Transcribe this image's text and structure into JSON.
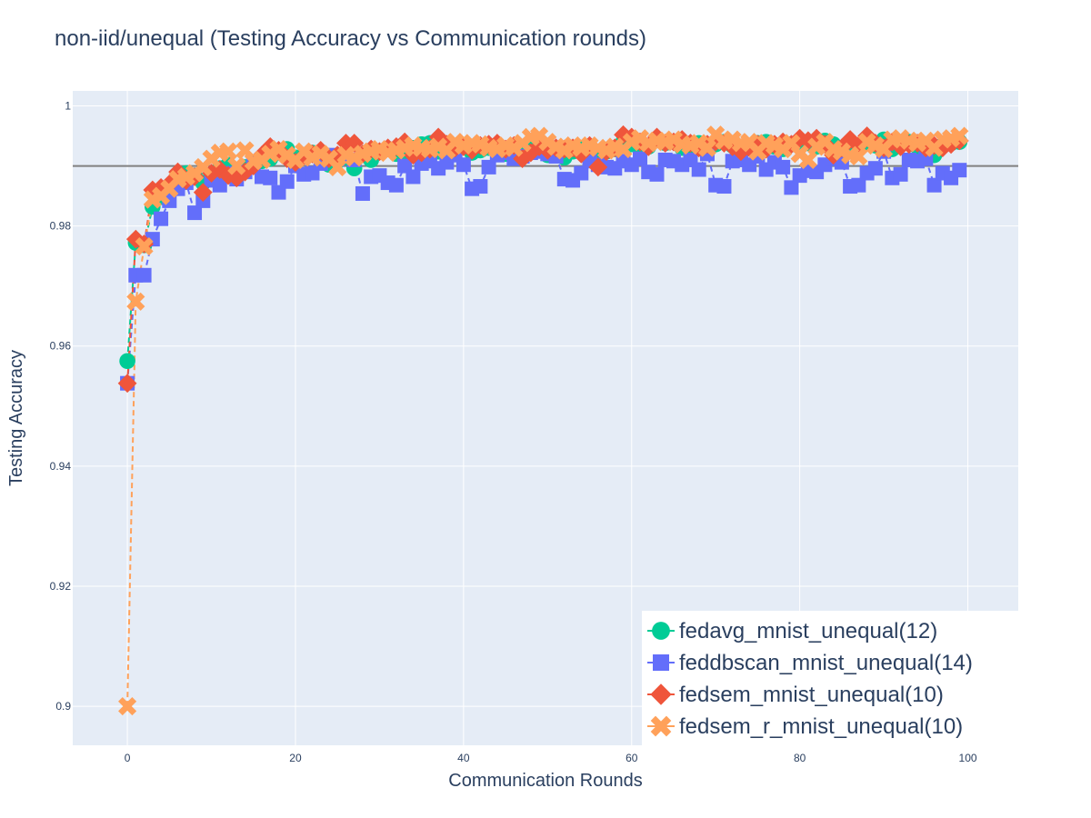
{
  "chart_data": {
    "type": "scatter",
    "mode": "lines+markers",
    "title": "non-iid/unequal (Testing Accuracy vs Communication rounds)",
    "xlabel": "Communication Rounds",
    "ylabel": "Testing Accuracy",
    "xlim": [
      -6.5,
      106
    ],
    "ylim": [
      0.8935,
      1.0025
    ],
    "xticks": [
      0,
      20,
      40,
      60,
      80,
      100
    ],
    "xtick_labels": [
      "0",
      "20",
      "40",
      "60",
      "80",
      "100"
    ],
    "yticks": [
      0.9,
      0.92,
      0.94,
      0.96,
      0.98,
      1.0
    ],
    "ytick_labels": [
      "0.9",
      "0.92",
      "0.94",
      "0.96",
      "0.98",
      "1"
    ],
    "grid": true,
    "hline": 0.99,
    "hline_color": "#808080",
    "legend_position": "bottom-right",
    "colors": {
      "plot_bg": "#e5ecf6",
      "grid": "#ffffff",
      "text": "#2a3f5f"
    },
    "series": [
      {
        "name": "fedavg_mnist_unequal(12)",
        "color": "#00cc96",
        "marker": "circle",
        "x": [
          0,
          1,
          2,
          3,
          4,
          5,
          6,
          7,
          8,
          9,
          10,
          11,
          12,
          13,
          14,
          15,
          16,
          17,
          18,
          19,
          20,
          21,
          22,
          23,
          24,
          25,
          26,
          27,
          28,
          29,
          30,
          31,
          32,
          33,
          34,
          35,
          36,
          37,
          38,
          39,
          40,
          41,
          42,
          43,
          44,
          45,
          46,
          47,
          48,
          49,
          50,
          51,
          52,
          53,
          54,
          55,
          56,
          57,
          58,
          59,
          60,
          61,
          62,
          63,
          64,
          65,
          66,
          67,
          68,
          69,
          70,
          71,
          72,
          73,
          74,
          75,
          76,
          77,
          78,
          79,
          80,
          81,
          82,
          83,
          84,
          85,
          86,
          87,
          88,
          89,
          90,
          91,
          92,
          93,
          94,
          95,
          96,
          97,
          98,
          99
        ],
        "values": [
          0.9575,
          0.9772,
          0.9768,
          0.9832,
          0.9848,
          0.9858,
          0.9868,
          0.9888,
          0.9884,
          0.9872,
          0.9878,
          0.9896,
          0.9902,
          0.9892,
          0.9898,
          0.9904,
          0.9908,
          0.9912,
          0.9922,
          0.9928,
          0.9914,
          0.9918,
          0.9922,
          0.9916,
          0.9902,
          0.9908,
          0.9914,
          0.9896,
          0.9918,
          0.991,
          0.9924,
          0.9928,
          0.992,
          0.9916,
          0.993,
          0.9936,
          0.9938,
          0.9924,
          0.992,
          0.9928,
          0.9932,
          0.9922,
          0.9926,
          0.993,
          0.9934,
          0.992,
          0.9924,
          0.9928,
          0.9932,
          0.9926,
          0.9918,
          0.9922,
          0.9914,
          0.9924,
          0.993,
          0.992,
          0.9916,
          0.9924,
          0.9928,
          0.994,
          0.9936,
          0.9928,
          0.9932,
          0.9944,
          0.9938,
          0.994,
          0.993,
          0.9934,
          0.9938,
          0.9932,
          0.9936,
          0.994,
          0.9934,
          0.993,
          0.9932,
          0.9938,
          0.994,
          0.9932,
          0.9928,
          0.9936,
          0.9934,
          0.9938,
          0.9932,
          0.9942,
          0.9936,
          0.9928,
          0.9932,
          0.993,
          0.9938,
          0.9934,
          0.9944,
          0.9928,
          0.9936,
          0.994,
          0.9932,
          0.993,
          0.9918,
          0.9934,
          0.9938,
          0.994
        ]
      },
      {
        "name": "feddbscan_mnist_unequal(14)",
        "color": "#636efa",
        "marker": "square",
        "x": [
          0,
          1,
          2,
          3,
          4,
          5,
          6,
          7,
          8,
          9,
          10,
          11,
          12,
          13,
          14,
          15,
          16,
          17,
          18,
          19,
          20,
          21,
          22,
          23,
          24,
          25,
          26,
          27,
          28,
          29,
          30,
          31,
          32,
          33,
          34,
          35,
          36,
          37,
          38,
          39,
          40,
          41,
          42,
          43,
          44,
          45,
          46,
          47,
          48,
          49,
          50,
          51,
          52,
          53,
          54,
          55,
          56,
          57,
          58,
          59,
          60,
          61,
          62,
          63,
          64,
          65,
          66,
          67,
          68,
          69,
          70,
          71,
          72,
          73,
          74,
          75,
          76,
          77,
          78,
          79,
          80,
          81,
          82,
          83,
          84,
          85,
          86,
          87,
          88,
          89,
          90,
          91,
          92,
          93,
          94,
          95,
          96,
          97,
          98,
          99
        ],
        "values": [
          0.9538,
          0.9718,
          0.9718,
          0.9778,
          0.9812,
          0.9842,
          0.9862,
          0.9872,
          0.9822,
          0.9842,
          0.9876,
          0.9868,
          0.9888,
          0.9878,
          0.989,
          0.9904,
          0.9882,
          0.988,
          0.9856,
          0.9874,
          0.99,
          0.9886,
          0.9888,
          0.9904,
          0.9918,
          0.9912,
          0.9916,
          0.991,
          0.9854,
          0.9882,
          0.9884,
          0.9872,
          0.9868,
          0.99,
          0.9882,
          0.9904,
          0.9908,
          0.9896,
          0.9906,
          0.9918,
          0.9902,
          0.9862,
          0.9866,
          0.9898,
          0.9918,
          0.9922,
          0.9912,
          0.9916,
          0.9922,
          0.9924,
          0.992,
          0.9916,
          0.9878,
          0.9876,
          0.9888,
          0.9908,
          0.9902,
          0.9898,
          0.9896,
          0.9908,
          0.9902,
          0.9912,
          0.989,
          0.9886,
          0.991,
          0.9908,
          0.9902,
          0.991,
          0.9894,
          0.992,
          0.9868,
          0.9866,
          0.9908,
          0.991,
          0.9902,
          0.9916,
          0.9894,
          0.9906,
          0.9898,
          0.9864,
          0.9884,
          0.9892,
          0.989,
          0.9902,
          0.9912,
          0.9906,
          0.9866,
          0.9868,
          0.9888,
          0.9896,
          0.9924,
          0.988,
          0.9886,
          0.991,
          0.9908,
          0.9912,
          0.9868,
          0.9888,
          0.988,
          0.9893
        ]
      },
      {
        "name": "fedsem_mnist_unequal(10)",
        "color": "#ef553b",
        "marker": "diamond",
        "x": [
          0,
          1,
          2,
          3,
          4,
          5,
          6,
          7,
          8,
          9,
          10,
          11,
          12,
          13,
          14,
          15,
          16,
          17,
          18,
          19,
          20,
          21,
          22,
          23,
          24,
          25,
          26,
          27,
          28,
          29,
          30,
          31,
          32,
          33,
          34,
          35,
          36,
          37,
          38,
          39,
          40,
          41,
          42,
          43,
          44,
          45,
          46,
          47,
          48,
          49,
          50,
          51,
          52,
          53,
          54,
          55,
          56,
          57,
          58,
          59,
          60,
          61,
          62,
          63,
          64,
          65,
          66,
          67,
          68,
          69,
          70,
          71,
          72,
          73,
          74,
          75,
          76,
          77,
          78,
          79,
          80,
          81,
          82,
          83,
          84,
          85,
          86,
          87,
          88,
          89,
          90,
          91,
          92,
          93,
          94,
          95,
          96,
          97,
          98,
          99
        ],
        "values": [
          0.9538,
          0.9778,
          0.977,
          0.986,
          0.9864,
          0.987,
          0.989,
          0.9876,
          0.9882,
          0.9856,
          0.9888,
          0.9894,
          0.9884,
          0.988,
          0.989,
          0.99,
          0.9918,
          0.9932,
          0.9926,
          0.9912,
          0.9906,
          0.9916,
          0.992,
          0.9926,
          0.9912,
          0.9918,
          0.9938,
          0.9938,
          0.992,
          0.9928,
          0.9924,
          0.993,
          0.9932,
          0.994,
          0.9918,
          0.9922,
          0.9928,
          0.9948,
          0.9936,
          0.993,
          0.9932,
          0.9926,
          0.9934,
          0.9936,
          0.9938,
          0.9928,
          0.9934,
          0.9912,
          0.9922,
          0.9932,
          0.9926,
          0.993,
          0.9928,
          0.993,
          0.992,
          0.9934,
          0.9898,
          0.9924,
          0.993,
          0.9952,
          0.9948,
          0.994,
          0.9932,
          0.9948,
          0.9938,
          0.994,
          0.9944,
          0.9938,
          0.993,
          0.9936,
          0.994,
          0.9938,
          0.9932,
          0.9924,
          0.993,
          0.9936,
          0.9928,
          0.9936,
          0.994,
          0.9936,
          0.9946,
          0.9942,
          0.9946,
          0.9936,
          0.9918,
          0.993,
          0.9944,
          0.9934,
          0.995,
          0.9938,
          0.993,
          0.994,
          0.9932,
          0.9936,
          0.9938,
          0.993,
          0.9934,
          0.993,
          0.9936,
          0.9942
        ]
      },
      {
        "name": "fedsem_r_mnist_unequal(10)",
        "color": "#ffa15a",
        "marker": "x",
        "x": [
          0,
          1,
          2,
          3,
          4,
          5,
          6,
          7,
          8,
          9,
          10,
          11,
          12,
          13,
          14,
          15,
          16,
          17,
          18,
          19,
          20,
          21,
          22,
          23,
          24,
          25,
          26,
          27,
          28,
          29,
          30,
          31,
          32,
          33,
          34,
          35,
          36,
          37,
          38,
          39,
          40,
          41,
          42,
          43,
          44,
          45,
          46,
          47,
          48,
          49,
          50,
          51,
          52,
          53,
          54,
          55,
          56,
          57,
          58,
          59,
          60,
          61,
          62,
          63,
          64,
          65,
          66,
          67,
          68,
          69,
          70,
          71,
          72,
          73,
          74,
          75,
          76,
          77,
          78,
          79,
          80,
          81,
          82,
          83,
          84,
          85,
          86,
          87,
          88,
          89,
          90,
          91,
          92,
          93,
          94,
          95,
          96,
          97,
          98,
          99
        ],
        "values": [
          0.9,
          0.9674,
          0.9766,
          0.9844,
          0.985,
          0.9862,
          0.9878,
          0.9882,
          0.9888,
          0.9898,
          0.9912,
          0.9922,
          0.9924,
          0.99,
          0.9926,
          0.9908,
          0.991,
          0.992,
          0.9928,
          0.9918,
          0.991,
          0.9924,
          0.9914,
          0.992,
          0.9912,
          0.9898,
          0.9918,
          0.9914,
          0.992,
          0.9924,
          0.9928,
          0.9922,
          0.9926,
          0.993,
          0.9934,
          0.993,
          0.9928,
          0.9932,
          0.9926,
          0.994,
          0.9934,
          0.9938,
          0.9936,
          0.993,
          0.9928,
          0.9934,
          0.993,
          0.9938,
          0.9948,
          0.995,
          0.994,
          0.9932,
          0.9926,
          0.9934,
          0.993,
          0.9934,
          0.993,
          0.9926,
          0.9932,
          0.9928,
          0.994,
          0.9946,
          0.9938,
          0.9942,
          0.994,
          0.9944,
          0.9936,
          0.9934,
          0.9938,
          0.993,
          0.9952,
          0.9942,
          0.9944,
          0.9938,
          0.994,
          0.9924,
          0.9938,
          0.9934,
          0.9928,
          0.9938,
          0.992,
          0.991,
          0.9932,
          0.994,
          0.9928,
          0.9924,
          0.9918,
          0.9916,
          0.994,
          0.9934,
          0.9928,
          0.9944,
          0.9946,
          0.9942,
          0.9938,
          0.9942,
          0.993,
          0.9944,
          0.9946,
          0.995
        ]
      }
    ]
  }
}
